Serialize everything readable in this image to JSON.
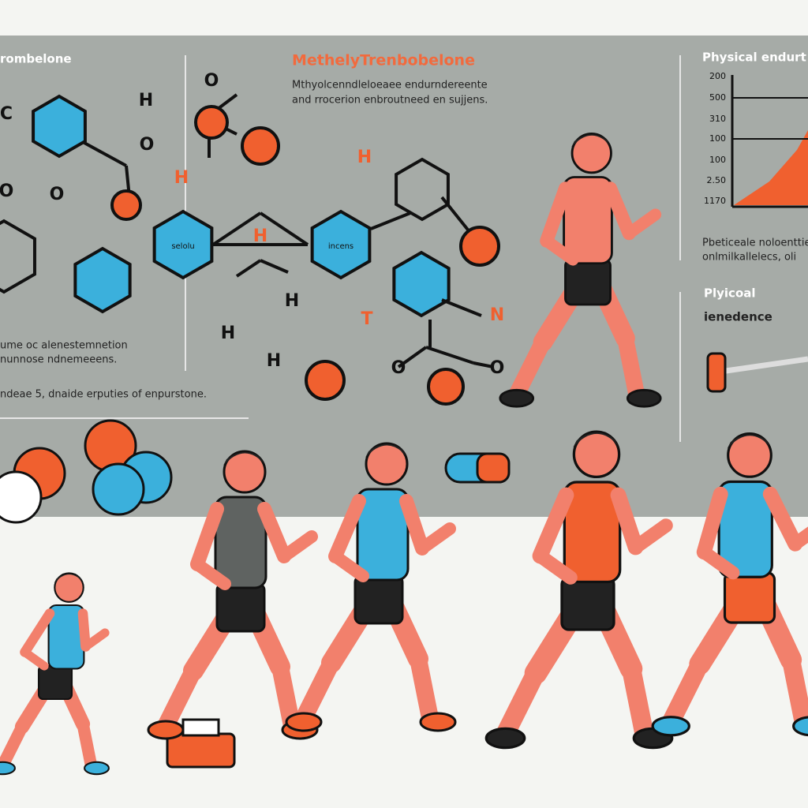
{
  "header": {
    "left_title": "rombelone",
    "title": "MethelyTrenbobelone",
    "subtitle_lines": [
      "Mthyolcenndleloeaee endurndereente",
      "and rrocerion enbroutneed en sujjens."
    ],
    "right_title": "Physical endurt"
  },
  "left_notes": [
    "ume oc alenestemnetion",
    "nunnose ndnemeeens.",
    "ndeae 5, dnaide erputies of enpurstone."
  ],
  "ring_labels": [
    "selolu",
    "incens"
  ],
  "atoms": [
    "O",
    "H",
    "O",
    "C",
    "O",
    "O",
    "H",
    "H",
    "H",
    "H",
    "H",
    "H",
    "T",
    "N",
    "O",
    "O"
  ],
  "mini_chart_labels": [
    "200",
    "500",
    "310",
    "100",
    "100",
    "2.50",
    "1170"
  ],
  "right_notes": [
    "Pbeticeale noloenttie",
    "onlmilkallelecs, oli"
  ],
  "right_heading": [
    "Plyicoal",
    "ienedence"
  ]
}
